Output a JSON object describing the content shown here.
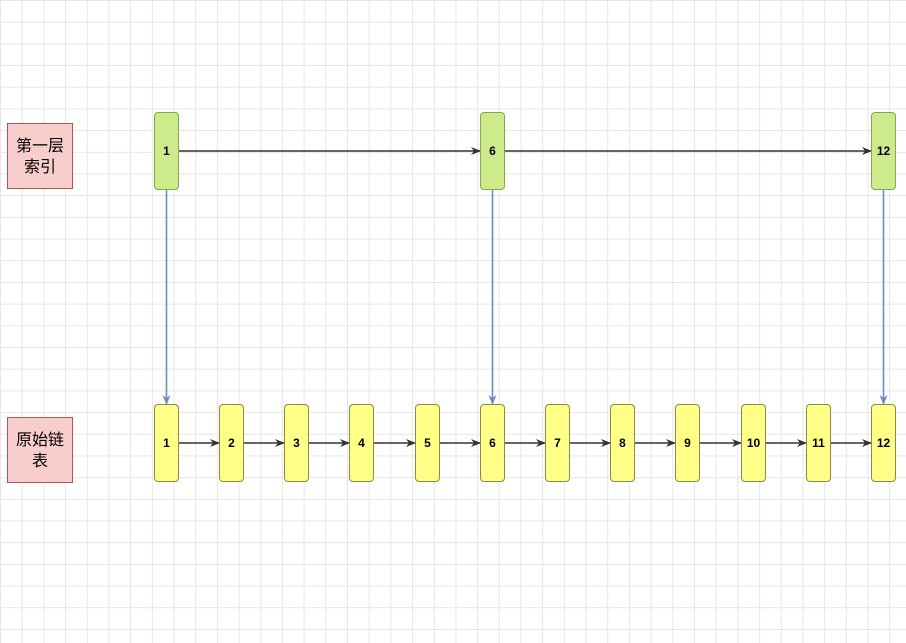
{
  "labels": {
    "index_level": "第一层索引",
    "base_list": "原始链表"
  },
  "index_nodes": [
    "1",
    "6",
    "12"
  ],
  "base_nodes": [
    "1",
    "2",
    "3",
    "4",
    "5",
    "6",
    "7",
    "8",
    "9",
    "10",
    "11",
    "12"
  ],
  "colors": {
    "index_fill": "#cdeb8b",
    "index_stroke": "#82a84a",
    "base_fill": "#ffff88",
    "base_stroke": "#8a8a42",
    "label_fill": "#f8cecc",
    "label_stroke": "#b85450",
    "horizontal_arrow": "#333333",
    "vertical_arrow": "#6c8ebf"
  }
}
